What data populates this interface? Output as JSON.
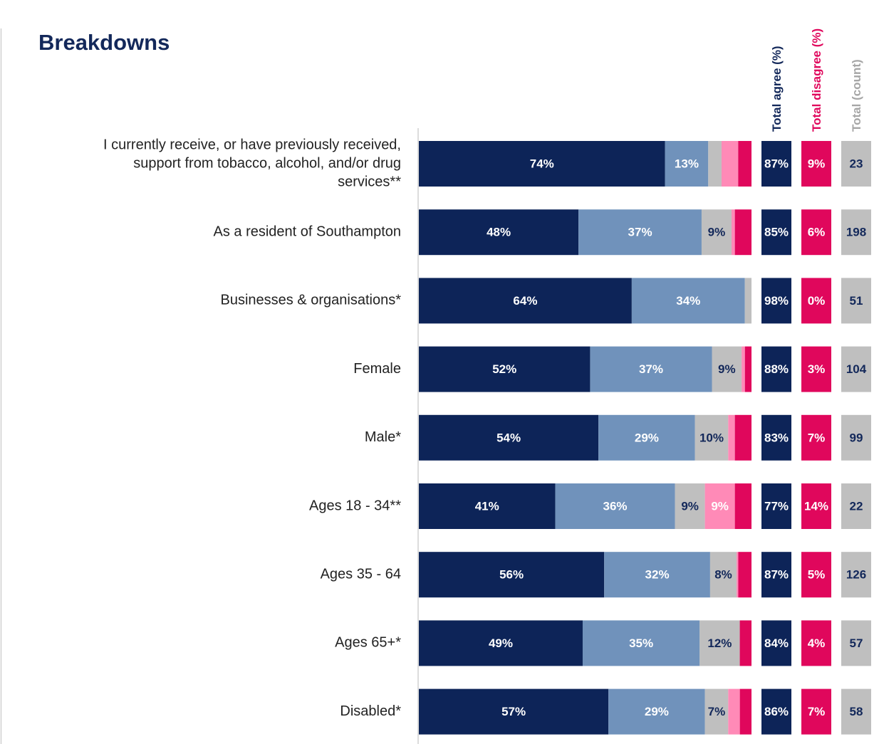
{
  "title": "Breakdowns",
  "chart_data": {
    "type": "bar",
    "orientation": "horizontal",
    "stacked": true,
    "xlim": [
      0,
      100
    ],
    "categories": [
      "I currently receive, or have previously received, support from tobacco, alcohol, and/or drug services**",
      "As a resident of Southampton",
      "Businesses & organisations*",
      "Female",
      "Male*",
      "Ages 18 - 34**",
      "Ages 35 - 64",
      "Ages 65+*",
      "Disabled*"
    ],
    "series": [
      {
        "values": [
          74,
          48,
          64,
          52,
          54,
          41,
          56,
          49,
          57
        ],
        "color": "#0d2458",
        "text_color": "#ffffff"
      },
      {
        "values": [
          13,
          37,
          34,
          37,
          29,
          36,
          32,
          35,
          29
        ],
        "color": "#7092bb",
        "text_color": "#ffffff"
      },
      {
        "values": [
          4,
          9,
          2,
          9,
          10,
          9,
          8,
          12,
          7
        ],
        "color": "#bfbfbf",
        "text_color": "#13285a"
      },
      {
        "values": [
          5,
          1,
          0,
          1,
          2,
          9,
          0.5,
          0,
          3.5
        ],
        "color": "#ff8ab7",
        "text_color": "#ffffff"
      },
      {
        "values": [
          4,
          5,
          0,
          2,
          5,
          5,
          4,
          3.5,
          3.5
        ],
        "color": "#e0075c",
        "text_color": "#ffffff"
      }
    ],
    "segment_labels": [
      [
        "74%",
        "13%",
        "",
        "",
        ""
      ],
      [
        "48%",
        "37%",
        "9%",
        "",
        ""
      ],
      [
        "64%",
        "34%",
        "",
        "",
        ""
      ],
      [
        "52%",
        "37%",
        "9%",
        "",
        ""
      ],
      [
        "54%",
        "29%",
        "10%",
        "",
        ""
      ],
      [
        "41%",
        "36%",
        "9%",
        "9%",
        ""
      ],
      [
        "56%",
        "32%",
        "8%",
        "",
        ""
      ],
      [
        "49%",
        "35%",
        "12%",
        "",
        ""
      ],
      [
        "57%",
        "29%",
        "7%",
        "",
        ""
      ]
    ],
    "summary_columns": [
      {
        "header": "Total agree (%)",
        "header_color": "#13285a",
        "box_color": "#0d2458",
        "text_color": "#ffffff",
        "values": [
          "87%",
          "85%",
          "98%",
          "88%",
          "83%",
          "77%",
          "87%",
          "84%",
          "86%"
        ]
      },
      {
        "header": "Total disagree (%)",
        "header_color": "#e0075c",
        "box_color": "#e0075c",
        "text_color": "#ffffff",
        "values": [
          "9%",
          "6%",
          "0%",
          "3%",
          "7%",
          "14%",
          "5%",
          "4%",
          "7%"
        ]
      },
      {
        "header": "Total (count)",
        "header_color": "#a6a6a6",
        "box_color": "#bfbfbf",
        "text_color": "#13285a",
        "values": [
          "23",
          "198",
          "51",
          "104",
          "99",
          "22",
          "126",
          "57",
          "58"
        ]
      }
    ]
  }
}
